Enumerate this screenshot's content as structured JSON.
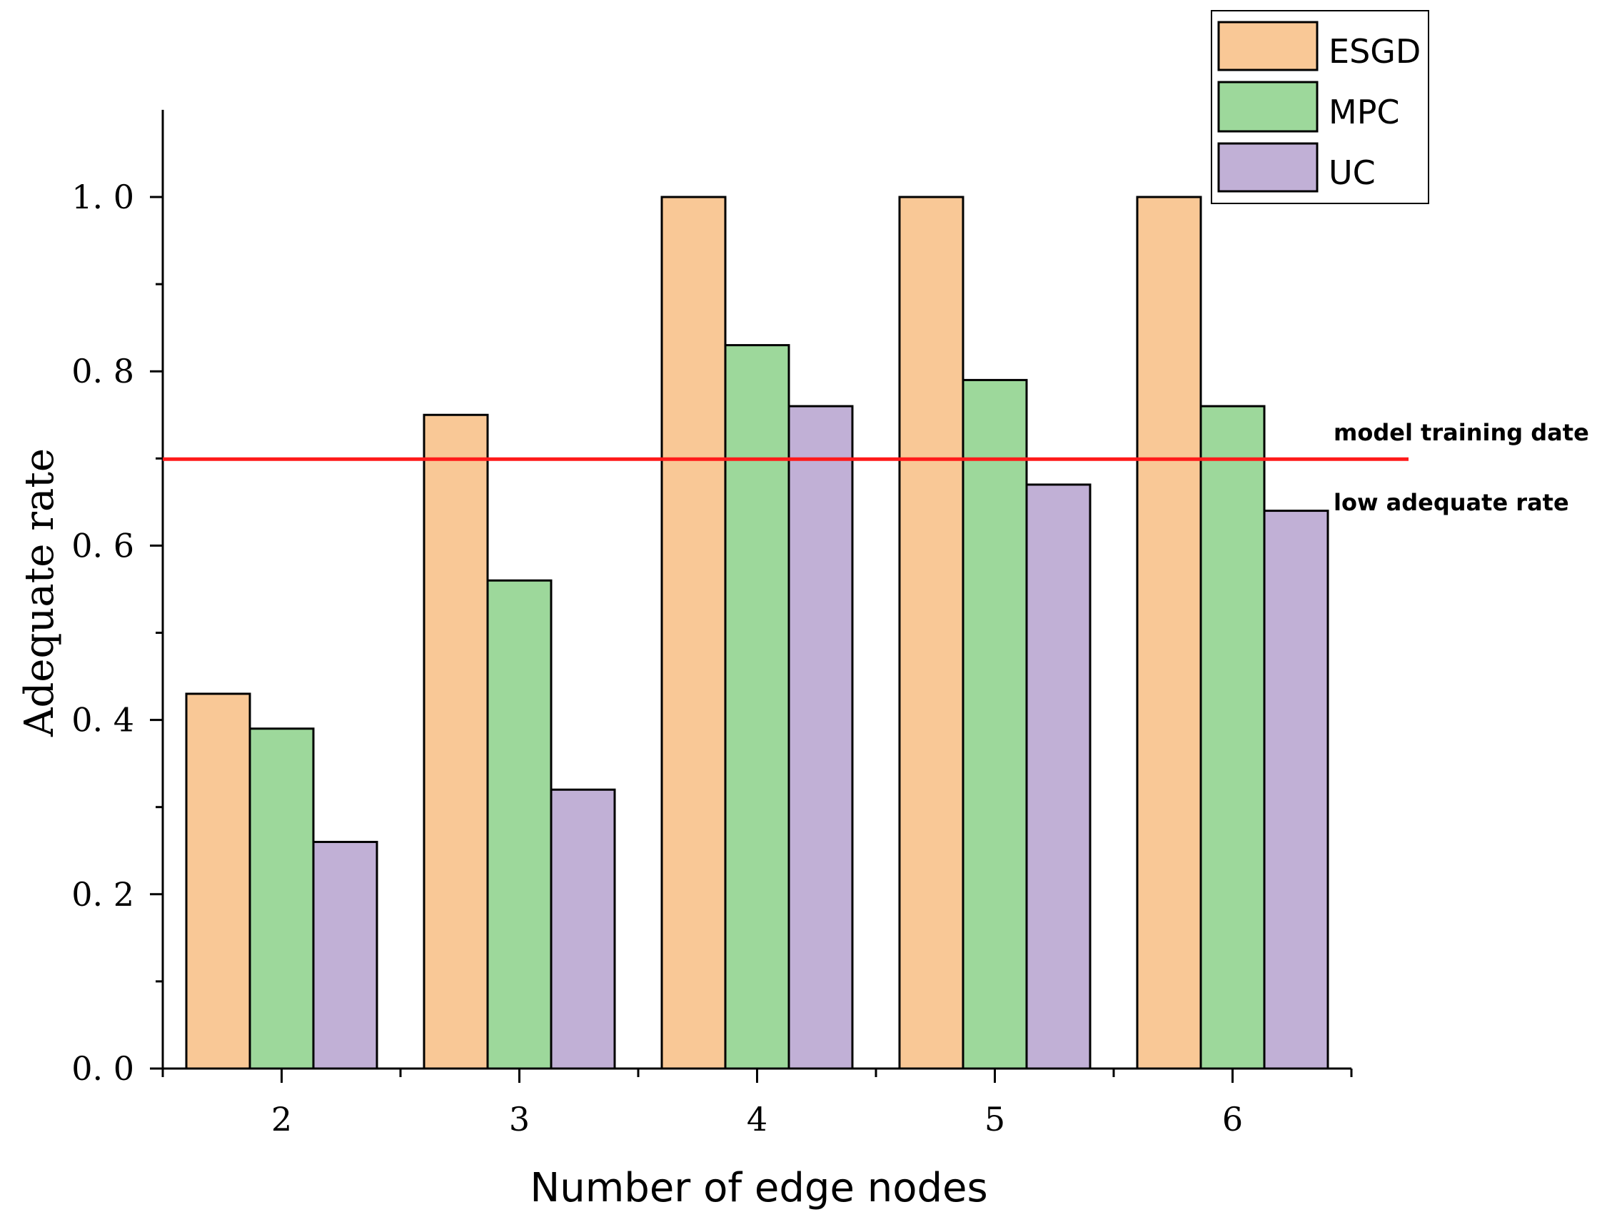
{
  "colors": {
    "ESGD": "#f9c896",
    "MPC": "#9dd89b",
    "UC": "#c1b0d6",
    "threshold": "#ff1a1a",
    "axis": "#000000"
  },
  "chart_data": {
    "type": "bar",
    "title": "",
    "xlabel": "Number of edge nodes",
    "ylabel": "Adequate rate",
    "categories": [
      "2",
      "3",
      "4",
      "5",
      "6"
    ],
    "series": [
      {
        "name": "ESGD",
        "values": [
          0.43,
          0.75,
          1.0,
          1.0,
          1.0
        ]
      },
      {
        "name": "MPC",
        "values": [
          0.39,
          0.56,
          0.83,
          0.79,
          0.76
        ]
      },
      {
        "name": "UC",
        "values": [
          0.26,
          0.32,
          0.76,
          0.67,
          0.64
        ]
      }
    ],
    "ylim": [
      0,
      1.1
    ],
    "yticks": [
      "0. 0",
      "0. 2",
      "0. 4",
      "0. 6",
      "0. 8",
      "1. 0"
    ],
    "ytick_values": [
      0.0,
      0.2,
      0.4,
      0.6,
      0.8,
      1.0
    ],
    "grid": false,
    "legend_position": "top-right",
    "threshold": {
      "value": 0.7,
      "label_above": "model training date",
      "label_below": "low adequate rate"
    }
  }
}
